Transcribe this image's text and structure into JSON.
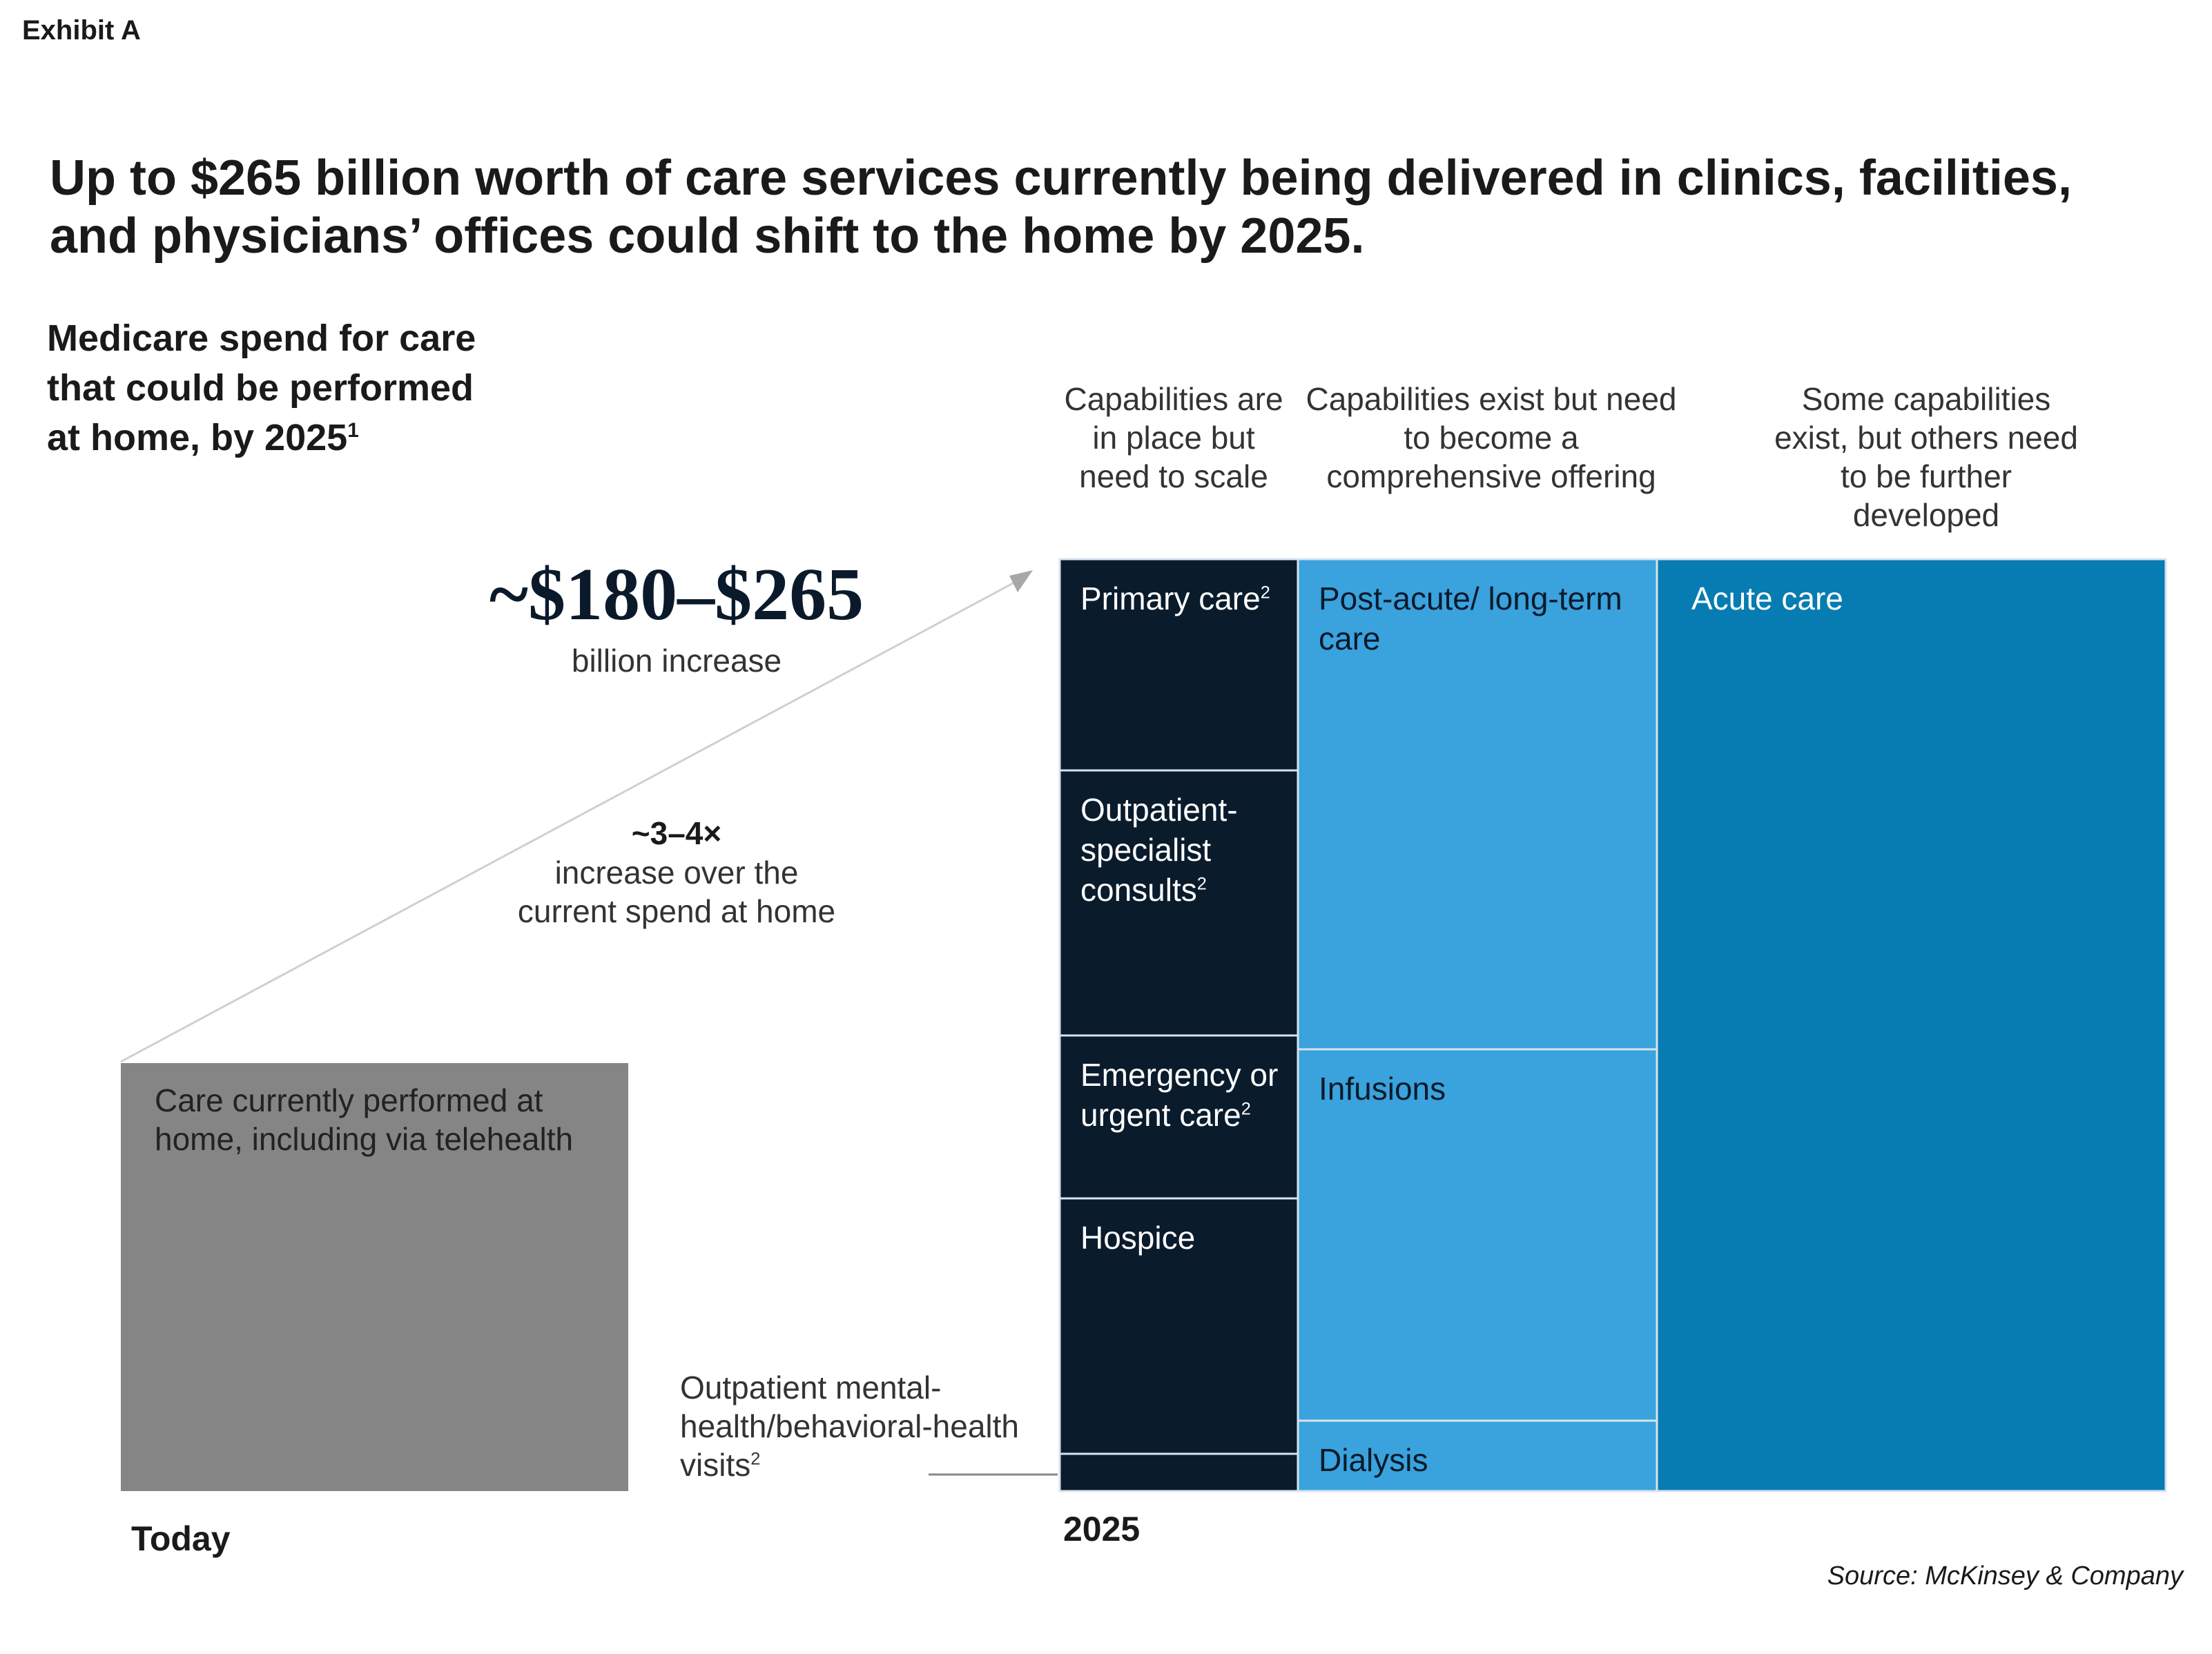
{
  "exhibit": "Exhibit A",
  "title": "Up to $265 billion worth of care services currently being delivered in clinics, facilities, and physicians’ offices could shift to the home by 2025.",
  "subtitle": "Medicare spend for care that could be performed at home, by 2025",
  "subtitle_footnote": "1",
  "range_value": "~$180–$265",
  "range_sub": "billion increase",
  "multiplier": "~3–4×",
  "multiplier_desc": "increase over the current spend at home",
  "source": "Source: McKinsey & Company",
  "colors": {
    "today": "#858585",
    "dark": "#0a1b2c",
    "light_blue": "#3aa2dc",
    "blue": "#077cb2",
    "divider": "#d8e4ee"
  },
  "chart_data": {
    "type": "marimekko",
    "categories": [
      "Today",
      "2025"
    ],
    "today": {
      "label": "Care currently performed at home, including via telehealth"
    },
    "groups": [
      {
        "header": "Capabilities are in place but need to scale",
        "segments": [
          {
            "label": "Primary care",
            "footnote": "2"
          },
          {
            "label": "Outpatient-specialist consults",
            "footnote": "2"
          },
          {
            "label": "Emergency or urgent care",
            "footnote": "2"
          },
          {
            "label": "Hospice",
            "footnote": ""
          },
          {
            "label": "Outpatient mental-health/behavioral-health visits",
            "footnote": "2"
          }
        ]
      },
      {
        "header": "Capabilities exist but need to become a comprehensive offering",
        "segments": [
          {
            "label": "Post-acute/ long-term care",
            "footnote": ""
          },
          {
            "label": "Infusions",
            "footnote": ""
          },
          {
            "label": "Dialysis",
            "footnote": ""
          }
        ]
      },
      {
        "header": "Some capabilities exist, but others need to be further developed",
        "segments": [
          {
            "label": "Acute care",
            "footnote": ""
          }
        ]
      }
    ]
  }
}
